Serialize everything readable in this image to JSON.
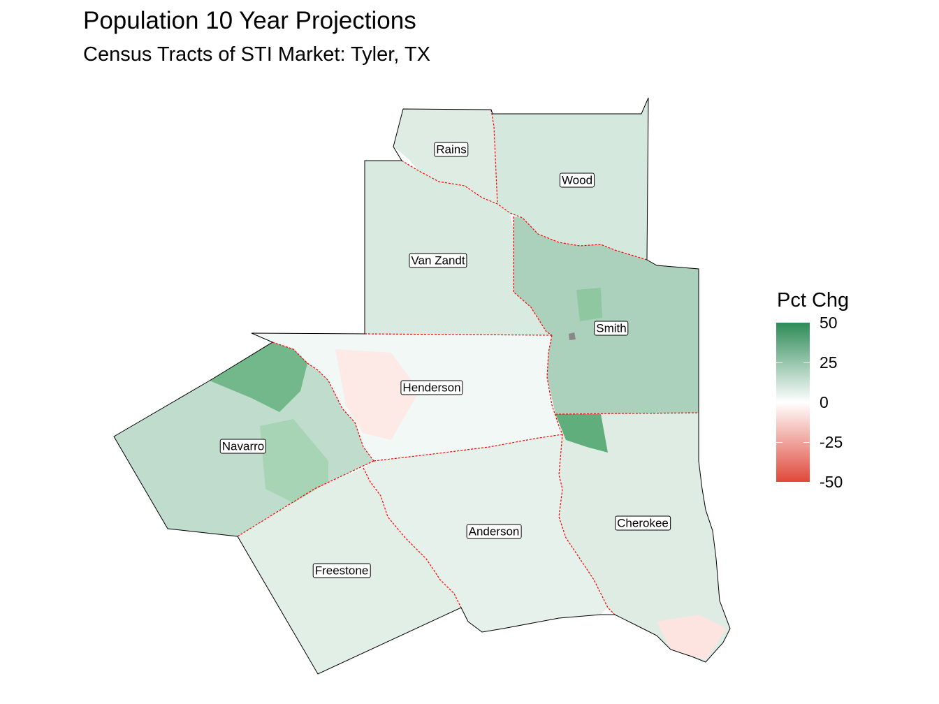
{
  "title": "Population 10 Year Projections",
  "subtitle": "Census Tracts of STI Market: Tyler, TX",
  "legend": {
    "title": "Pct Chg",
    "ticks": [
      "50",
      "25",
      "0",
      "-25",
      "-50"
    ],
    "tick_values": [
      50,
      25,
      0,
      -25,
      -50
    ],
    "range": [
      -50,
      50
    ],
    "colors": {
      "high": "#2e8b57",
      "mid": "#ffffff",
      "low": "#e0493a"
    }
  },
  "counties": [
    {
      "name": "Rains",
      "pct_chg": 8
    },
    {
      "name": "Wood",
      "pct_chg": 10
    },
    {
      "name": "Van Zandt",
      "pct_chg": 9
    },
    {
      "name": "Smith",
      "pct_chg": 20
    },
    {
      "name": "Henderson",
      "pct_chg": 3
    },
    {
      "name": "Navarro",
      "pct_chg": 15
    },
    {
      "name": "Anderson",
      "pct_chg": 6
    },
    {
      "name": "Cherokee",
      "pct_chg": 8
    },
    {
      "name": "Freestone",
      "pct_chg": 7
    }
  ],
  "colors": {
    "market_boundary": "#000000",
    "county_boundary": "#ff0000",
    "no_data": "#888888"
  }
}
